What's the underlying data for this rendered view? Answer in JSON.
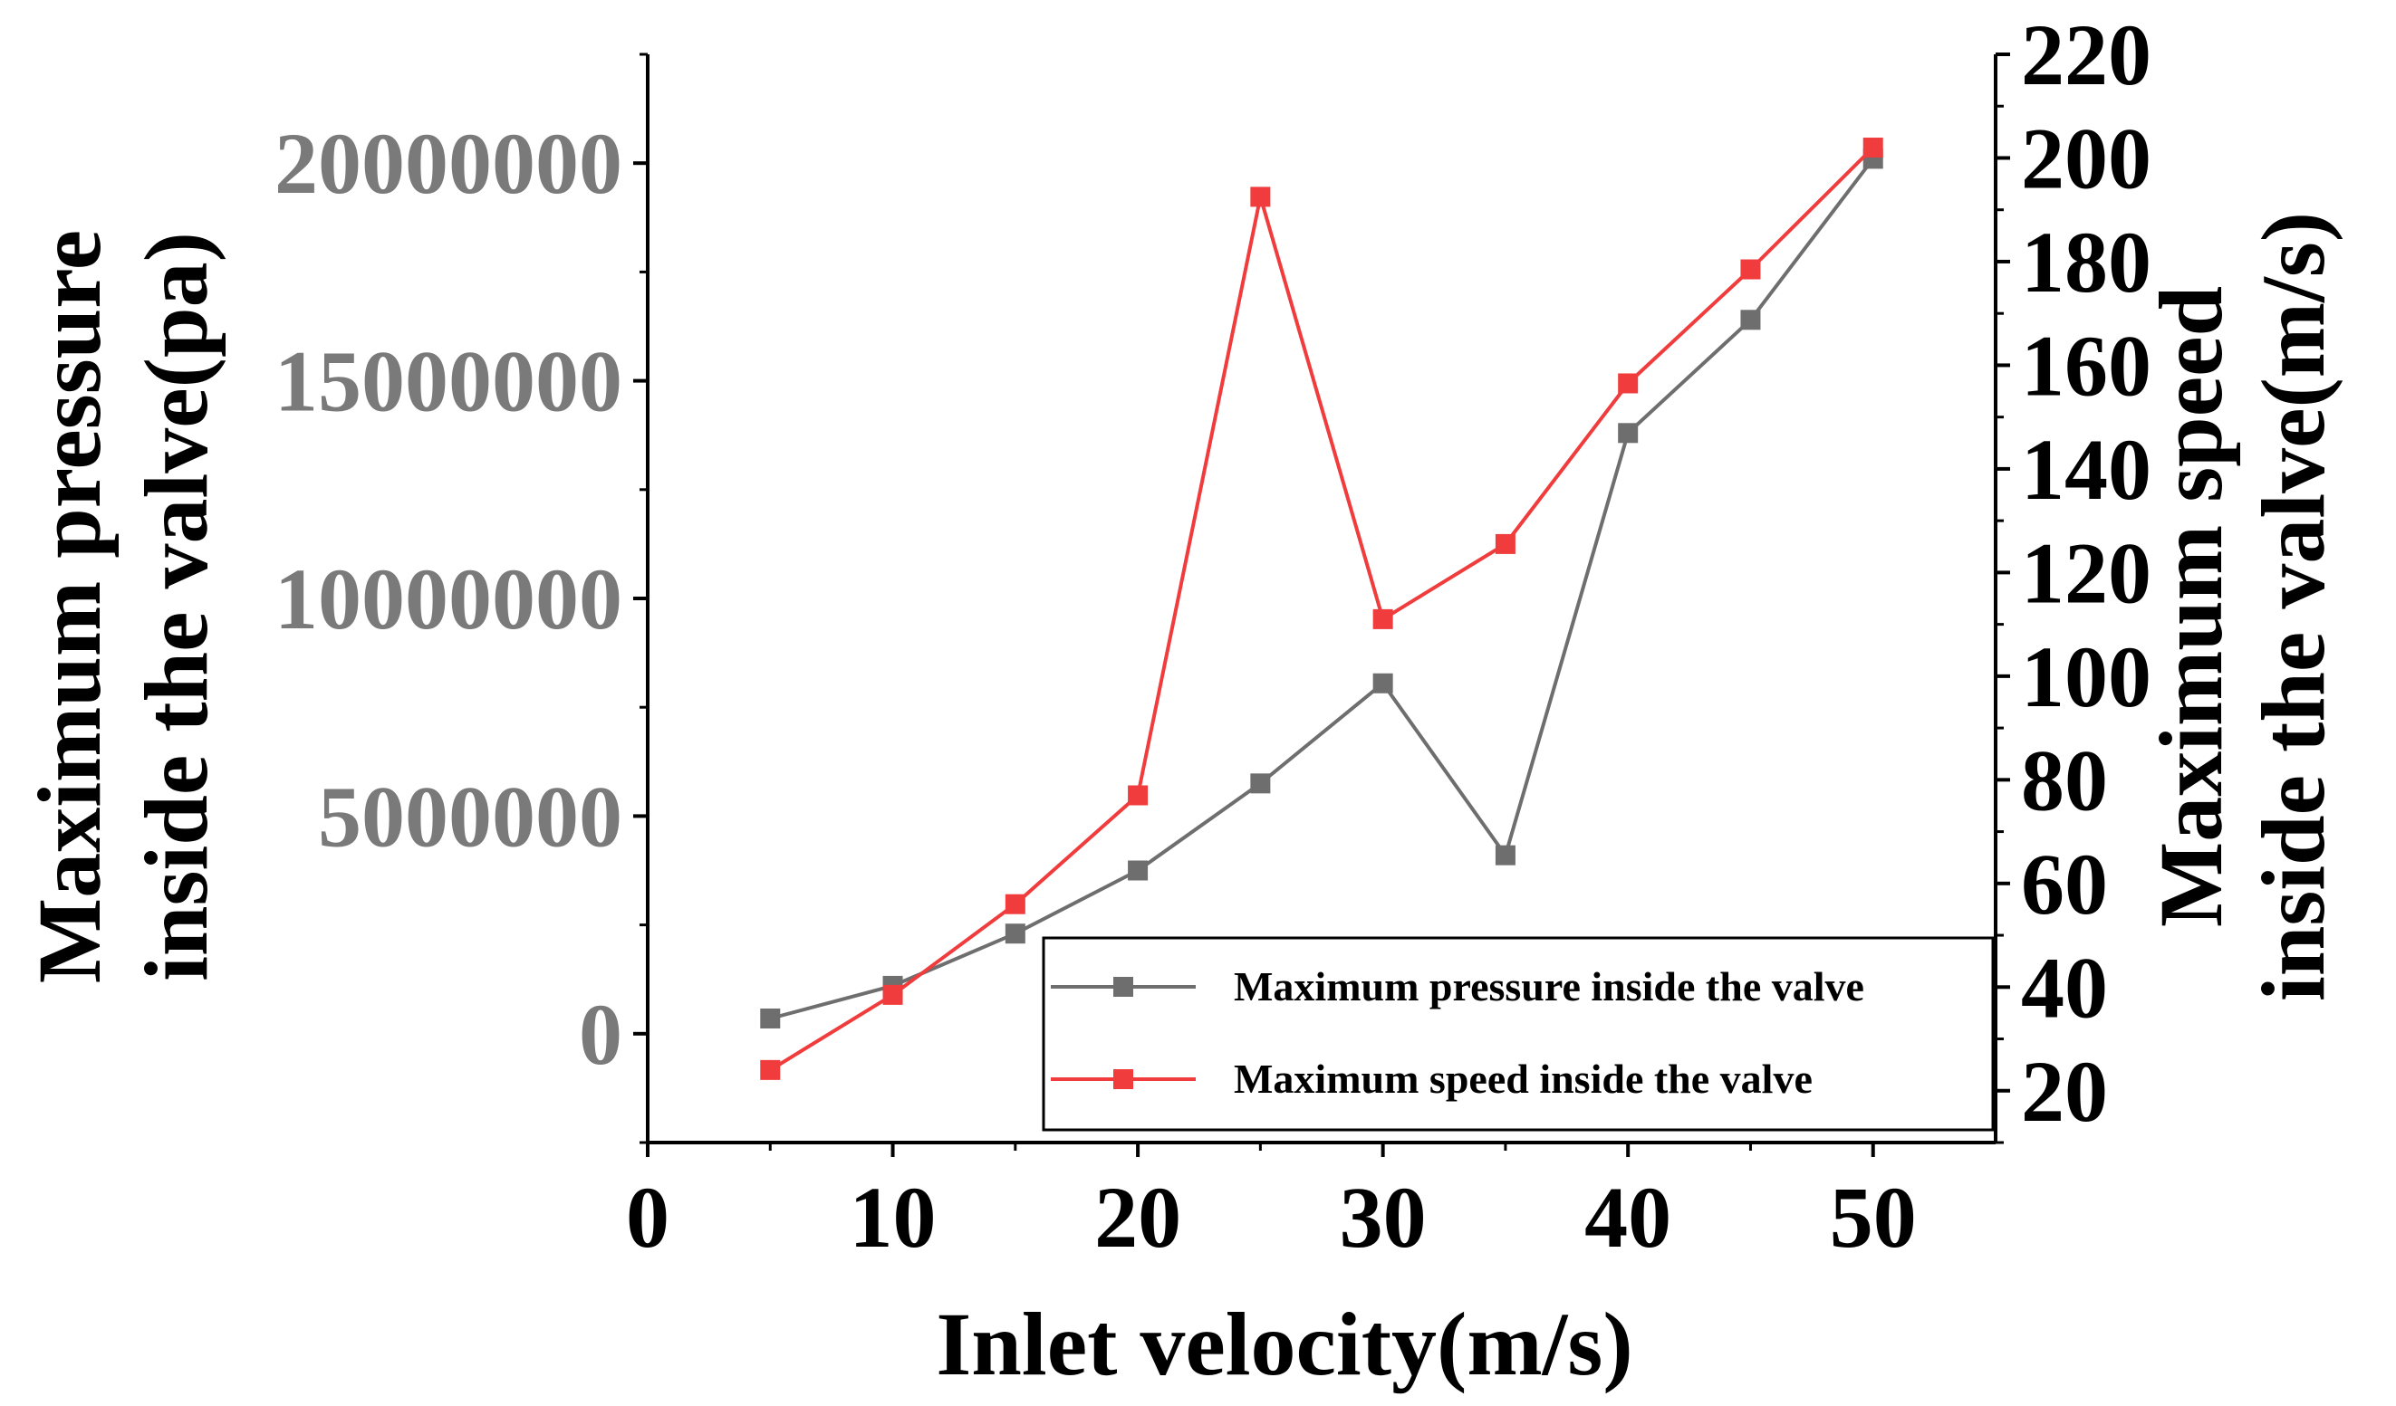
{
  "chart_data": {
    "type": "line",
    "title": "",
    "x": [
      5,
      10,
      15,
      20,
      25,
      30,
      35,
      40,
      45,
      50
    ],
    "xlabel": "Inlet velocity(m/s)",
    "xlim": [
      0,
      55
    ],
    "xticks": [
      0,
      10,
      20,
      30,
      40,
      50
    ],
    "xtick_labels": [
      "0",
      "10",
      "20",
      "30",
      "40",
      "50"
    ],
    "ylabel_left": [
      "Maximum pressure",
      "inside the valve(pa)"
    ],
    "ylim_left": [
      -2500000,
      22500000
    ],
    "yticks_left": [
      0,
      5000000,
      10000000,
      15000000,
      20000000
    ],
    "ytick_labels_left": [
      "0",
      "5000000",
      "10000000",
      "15000000",
      "20000000"
    ],
    "ylabel_right": [
      "Maximum speed",
      "inside the valve(m/s)"
    ],
    "ylim_right": [
      10,
      220
    ],
    "yticks_right": [
      20,
      40,
      60,
      80,
      100,
      120,
      140,
      160,
      180,
      200,
      220
    ],
    "ytick_labels_right": [
      "20",
      "40",
      "60",
      "80",
      "100",
      "120",
      "140",
      "160",
      "180",
      "200",
      "220"
    ],
    "legend_position": "bottom-right",
    "grid": false,
    "series": [
      {
        "name": "Maximum pressure inside the valve",
        "axis": "left",
        "color": "#6e6e6e",
        "values": [
          350000,
          1100000,
          2300000,
          3750000,
          5750000,
          8050000,
          4100000,
          13800000,
          16400000,
          20100000
        ]
      },
      {
        "name": "Maximum speed  inside the valve",
        "axis": "right",
        "color": "#f03c3c",
        "values": [
          24,
          38.5,
          56,
          77,
          192.5,
          111,
          125.5,
          156.5,
          178.5,
          202
        ]
      }
    ]
  }
}
